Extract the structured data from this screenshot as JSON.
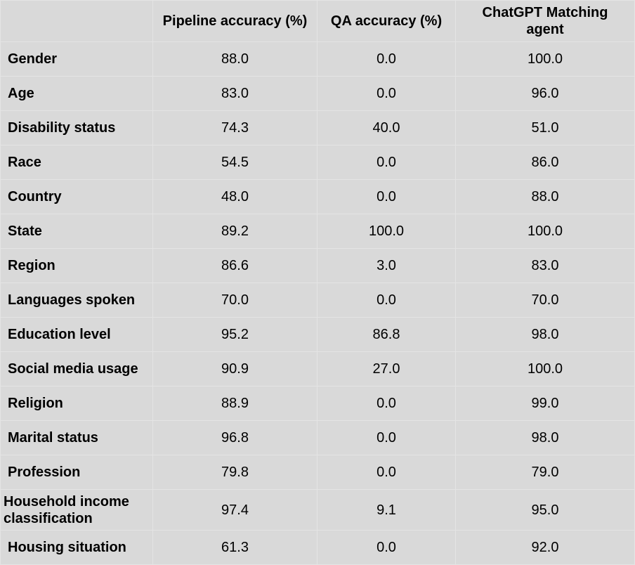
{
  "table": {
    "headers": [
      "",
      "Pipeline accuracy (%)",
      "QA accuracy (%)",
      "ChatGPT Matching agent"
    ],
    "rows": [
      {
        "label": "Gender",
        "pipeline": "88.0",
        "qa": "0.0",
        "chatgpt": "100.0"
      },
      {
        "label": "Age",
        "pipeline": "83.0",
        "qa": "0.0",
        "chatgpt": "96.0"
      },
      {
        "label": "Disability status",
        "pipeline": "74.3",
        "qa": "40.0",
        "chatgpt": "51.0"
      },
      {
        "label": "Race",
        "pipeline": "54.5",
        "qa": "0.0",
        "chatgpt": "86.0"
      },
      {
        "label": "Country",
        "pipeline": "48.0",
        "qa": "0.0",
        "chatgpt": "88.0"
      },
      {
        "label": "State",
        "pipeline": "89.2",
        "qa": "100.0",
        "chatgpt": "100.0"
      },
      {
        "label": "Region",
        "pipeline": "86.6",
        "qa": "3.0",
        "chatgpt": "83.0"
      },
      {
        "label": "Languages spoken",
        "pipeline": "70.0",
        "qa": "0.0",
        "chatgpt": "70.0"
      },
      {
        "label": "Education level",
        "pipeline": "95.2",
        "qa": "86.8",
        "chatgpt": "98.0"
      },
      {
        "label": "Social media usage",
        "pipeline": "90.9",
        "qa": "27.0",
        "chatgpt": "100.0"
      },
      {
        "label": "Religion",
        "pipeline": "88.9",
        "qa": "0.0",
        "chatgpt": "99.0"
      },
      {
        "label": "Marital status",
        "pipeline": "96.8",
        "qa": "0.0",
        "chatgpt": "98.0"
      },
      {
        "label": "Profession",
        "pipeline": "79.8",
        "qa": "0.0",
        "chatgpt": "79.0"
      },
      {
        "label": "Household income classification",
        "pipeline": "97.4",
        "qa": "9.1",
        "chatgpt": "95.0"
      },
      {
        "label": "Housing situation",
        "pipeline": "61.3",
        "qa": "0.0",
        "chatgpt": "92.0"
      }
    ]
  },
  "colors": {
    "cell_background": "#d9d9d9",
    "grid_line": "#e4e4e4",
    "text": "#000000"
  }
}
